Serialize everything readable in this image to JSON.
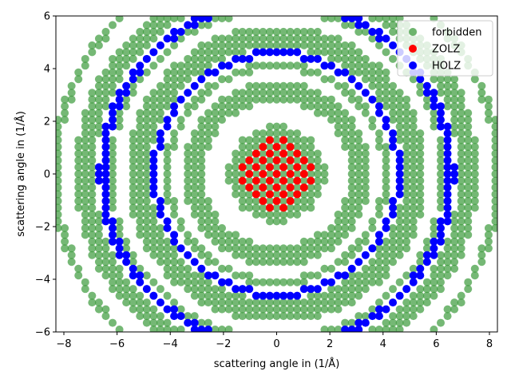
{
  "chart_data": {
    "type": "scatter",
    "title": "",
    "xlabel": "scattering angle in (1/Å)",
    "ylabel": "scattering angle in (1/Å)",
    "xlim": [
      -8.3,
      8.3
    ],
    "ylim": [
      -6,
      6
    ],
    "xticks": [
      "−8",
      "−6",
      "−4",
      "−2",
      "0",
      "2",
      "4",
      "6",
      "8"
    ],
    "yticks": [
      "−6",
      "−4",
      "−2",
      "0",
      "2",
      "4",
      "6"
    ],
    "grid": false,
    "legend_position": "top-right",
    "lattice_spacing": 0.257,
    "series": [
      {
        "name": "forbidden",
        "color": "#3a9a3a",
        "opacity": 0.7,
        "rings": [
          {
            "r_min": 0,
            "r_max": 1.45,
            "parity": "odd"
          },
          {
            "r_min": 1.45,
            "r_max": 1.85,
            "parity": "any"
          },
          {
            "r_min": 2.75,
            "r_max": 3.55,
            "parity": "any"
          },
          {
            "r_min": 3.95,
            "r_max": 4.25,
            "parity": "any"
          },
          {
            "r_min": 4.75,
            "r_max": 5.65,
            "parity": "any"
          },
          {
            "r_min": 6.15,
            "r_max": 6.35,
            "parity": "any"
          },
          {
            "r_min": 6.85,
            "r_max": 7.6,
            "parity": "any"
          },
          {
            "r_min": 8.2,
            "r_max": 8.5,
            "parity": "any"
          }
        ]
      },
      {
        "name": "ZOLZ",
        "color": "#ff0000",
        "opacity": 1,
        "rings": [
          {
            "r_min": 0,
            "r_max": 1.45,
            "parity": "even"
          }
        ]
      },
      {
        "name": "HOLZ",
        "color": "#0000ff",
        "opacity": 1,
        "rings": [
          {
            "r_min": 4.45,
            "r_max": 4.7,
            "parity": "any"
          },
          {
            "r_min": 6.4,
            "r_max": 6.7,
            "parity": "any"
          }
        ]
      }
    ]
  }
}
